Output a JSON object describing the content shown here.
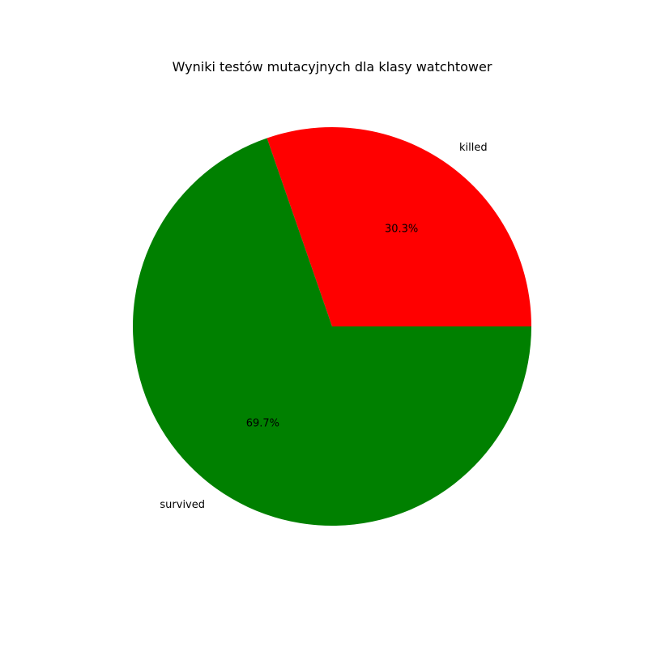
{
  "chart_data": {
    "type": "pie",
    "title": "Wyniki testów mutacyjnych dla klasy watchtower",
    "slices": [
      {
        "label": "killed",
        "value": 30.3,
        "pct_label": "30.3%",
        "color": "#ff0000"
      },
      {
        "label": "survived",
        "value": 69.7,
        "pct_label": "69.7%",
        "color": "#008000"
      }
    ],
    "start_angle_deg": 0,
    "direction": "counterclockwise"
  }
}
